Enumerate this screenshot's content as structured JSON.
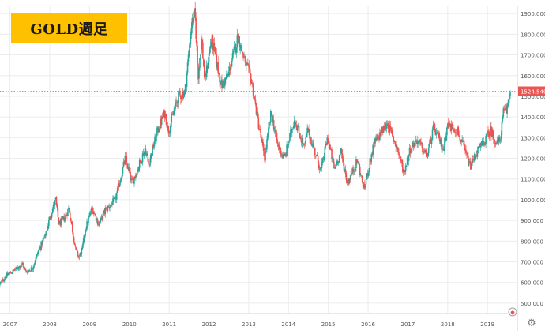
{
  "title": "GOLD週足",
  "current_price_label": "1524.540",
  "settings_icon": "gear-icon",
  "colors": {
    "up": "#26a69a",
    "down": "#ef5350",
    "price_tag": "#ef5350",
    "title_bg": "#ffc000"
  },
  "chart_data": {
    "type": "candlestick",
    "title": "GOLD週足",
    "x_axis": {
      "ticks": [
        "2007",
        "2008",
        "2009",
        "2010",
        "2011",
        "2012",
        "2013",
        "2014",
        "2015",
        "2016",
        "2017",
        "2018",
        "2019"
      ],
      "range": [
        "2006-10",
        "2019-10"
      ]
    },
    "y_axis": {
      "position": "right",
      "ylim": [
        450,
        1935
      ],
      "ticks": [
        "500.000",
        "600.000",
        "700.000",
        "800.000",
        "900.000",
        "1000.000",
        "1100.000",
        "1200.000",
        "1300.000",
        "1400.000",
        "1500.000",
        "1600.000",
        "1700.000",
        "1800.000",
        "1900.000"
      ]
    },
    "grid": true,
    "last_price": 1524.54,
    "price_path": [
      [
        "2006-10",
        590
      ],
      [
        "2006-12",
        630
      ],
      [
        "2007-03",
        665
      ],
      [
        "2007-05",
        690
      ],
      [
        "2007-06",
        650
      ],
      [
        "2007-08",
        670
      ],
      [
        "2007-10",
        760
      ],
      [
        "2007-12",
        830
      ],
      [
        "2008-01",
        900
      ],
      [
        "2008-03",
        1000
      ],
      [
        "2008-04",
        880
      ],
      [
        "2008-06",
        920
      ],
      [
        "2008-07",
        960
      ],
      [
        "2008-09",
        760
      ],
      [
        "2008-10",
        720
      ],
      [
        "2008-11",
        760
      ],
      [
        "2008-12",
        860
      ],
      [
        "2009-02",
        960
      ],
      [
        "2009-04",
        880
      ],
      [
        "2009-06",
        950
      ],
      [
        "2009-09",
        1000
      ],
      [
        "2009-12",
        1200
      ],
      [
        "2010-02",
        1080
      ],
      [
        "2010-04",
        1160
      ],
      [
        "2010-06",
        1250
      ],
      [
        "2010-07",
        1170
      ],
      [
        "2010-10",
        1350
      ],
      [
        "2010-12",
        1420
      ],
      [
        "2011-01",
        1330
      ],
      [
        "2011-04",
        1500
      ],
      [
        "2011-06",
        1520
      ],
      [
        "2011-08",
        1850
      ],
      [
        "2011-09",
        1900
      ],
      [
        "2011-10",
        1600
      ],
      [
        "2011-11",
        1780
      ],
      [
        "2011-12",
        1570
      ],
      [
        "2012-02",
        1780
      ],
      [
        "2012-05",
        1550
      ],
      [
        "2012-07",
        1600
      ],
      [
        "2012-10",
        1790
      ],
      [
        "2012-12",
        1670
      ],
      [
        "2013-02",
        1580
      ],
      [
        "2013-04",
        1380
      ],
      [
        "2013-06",
        1200
      ],
      [
        "2013-08",
        1420
      ],
      [
        "2013-10",
        1260
      ],
      [
        "2013-12",
        1200
      ],
      [
        "2014-03",
        1390
      ],
      [
        "2014-06",
        1250
      ],
      [
        "2014-07",
        1340
      ],
      [
        "2014-11",
        1140
      ],
      [
        "2015-01",
        1300
      ],
      [
        "2015-03",
        1150
      ],
      [
        "2015-05",
        1230
      ],
      [
        "2015-07",
        1080
      ],
      [
        "2015-10",
        1190
      ],
      [
        "2015-12",
        1050
      ],
      [
        "2016-03",
        1270
      ],
      [
        "2016-07",
        1370
      ],
      [
        "2016-10",
        1250
      ],
      [
        "2016-12",
        1130
      ],
      [
        "2017-02",
        1250
      ],
      [
        "2017-04",
        1290
      ],
      [
        "2017-07",
        1210
      ],
      [
        "2017-09",
        1350
      ],
      [
        "2017-12",
        1240
      ],
      [
        "2018-01",
        1360
      ],
      [
        "2018-04",
        1340
      ],
      [
        "2018-08",
        1160
      ],
      [
        "2018-10",
        1230
      ],
      [
        "2019-01",
        1300
      ],
      [
        "2019-02",
        1340
      ],
      [
        "2019-04",
        1270
      ],
      [
        "2019-05",
        1290
      ],
      [
        "2019-06",
        1420
      ],
      [
        "2019-07",
        1430
      ],
      [
        "2019-08",
        1525
      ]
    ]
  }
}
